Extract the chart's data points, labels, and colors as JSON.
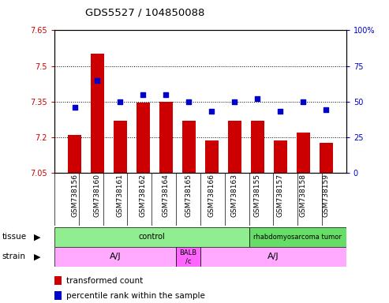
{
  "title": "GDS5527 / 104850088",
  "samples": [
    "GSM738156",
    "GSM738160",
    "GSM738161",
    "GSM738162",
    "GSM738164",
    "GSM738165",
    "GSM738166",
    "GSM738163",
    "GSM738155",
    "GSM738157",
    "GSM738158",
    "GSM738159"
  ],
  "red_values": [
    7.21,
    7.55,
    7.27,
    7.345,
    7.35,
    7.27,
    7.185,
    7.27,
    7.27,
    7.185,
    7.22,
    7.175
  ],
  "blue_values": [
    46,
    65,
    50,
    55,
    55,
    50,
    43,
    50,
    52,
    43,
    50,
    44
  ],
  "ylim_left": [
    7.05,
    7.65
  ],
  "ylim_right": [
    0,
    100
  ],
  "yticks_left": [
    7.05,
    7.2,
    7.35,
    7.5,
    7.65
  ],
  "yticks_right": [
    0,
    25,
    50,
    75,
    100
  ],
  "ytick_left_labels": [
    "7.05",
    "7.2",
    "7.35",
    "7.5",
    "7.65"
  ],
  "ytick_right_labels": [
    "0",
    "25",
    "50",
    "75",
    "100%"
  ],
  "gridlines": [
    7.2,
    7.35,
    7.5
  ],
  "bar_color": "#CC0000",
  "dot_color": "#0000CC",
  "bar_bottom": 7.05,
  "tissue_groups": [
    {
      "label": "control",
      "start": 0,
      "end": 8,
      "color": "#90EE90"
    },
    {
      "label": "rhabdomyosarcoma tumor",
      "start": 8,
      "end": 12,
      "color": "#66DD66"
    }
  ],
  "strain_groups": [
    {
      "label": "A/J",
      "start": 0,
      "end": 5,
      "color": "#FFAAFF"
    },
    {
      "label": "BALB\n/c",
      "start": 5,
      "end": 6,
      "color": "#FF66FF"
    },
    {
      "label": "A/J",
      "start": 6,
      "end": 12,
      "color": "#FFAAFF"
    }
  ],
  "legend_items": [
    {
      "color": "#CC0000",
      "label": "transformed count"
    },
    {
      "color": "#0000CC",
      "label": "percentile rank within the sample"
    }
  ],
  "n_samples": 12
}
